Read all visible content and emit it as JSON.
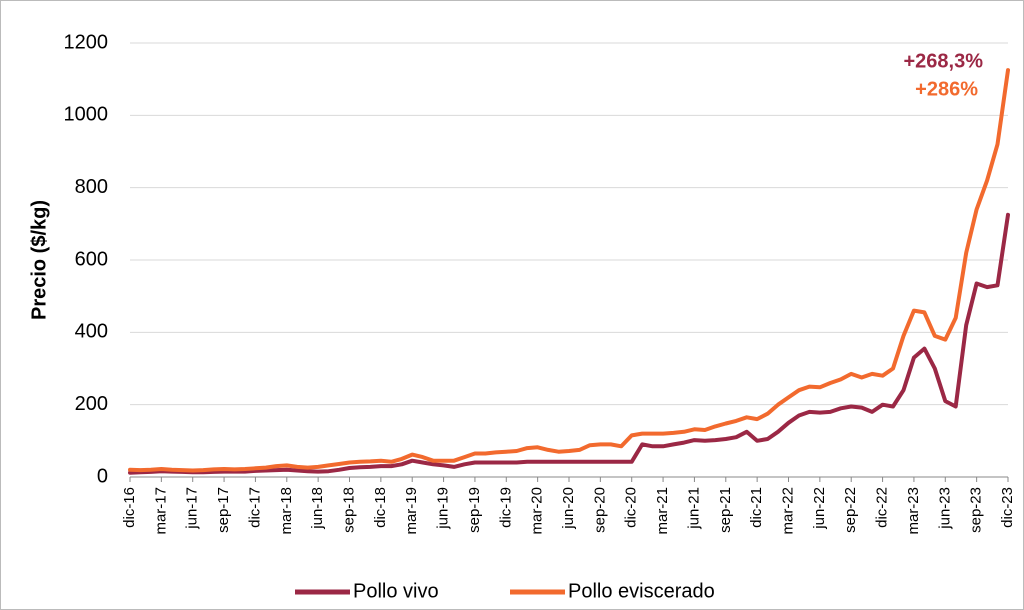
{
  "chart_data": {
    "type": "line",
    "y_label": "Precio ($/kg)",
    "ylim": [
      0,
      1200
    ],
    "yticks": [
      0,
      200,
      400,
      600,
      800,
      1000,
      1200
    ],
    "grid": true,
    "legend": "bottom",
    "categories": [
      "dic-16",
      null,
      null,
      "mar-17",
      null,
      null,
      "jun-17",
      null,
      null,
      "sep-17",
      null,
      null,
      "dic-17",
      null,
      null,
      "mar-18",
      null,
      null,
      "jun-18",
      null,
      null,
      "sep-18",
      null,
      null,
      "dic-18",
      null,
      null,
      "mar-19",
      null,
      null,
      "jun-19",
      null,
      null,
      "sep-19",
      null,
      null,
      "dic-19",
      null,
      null,
      "mar-20",
      null,
      null,
      "jun-20",
      null,
      null,
      "sep-20",
      null,
      null,
      "dic-20",
      null,
      null,
      "mar-21",
      null,
      null,
      "jun-21",
      null,
      null,
      "sep-21",
      null,
      null,
      "dic-21",
      null,
      null,
      "mar-22",
      null,
      null,
      "jun-22",
      null,
      null,
      "sep-22",
      null,
      null,
      "dic-22",
      null,
      null,
      "mar-23",
      null,
      null,
      "jun-23",
      null,
      null,
      "sep-23",
      null,
      null,
      "dic-23"
    ],
    "series": [
      {
        "name": "Pollo vivo",
        "color": "#9b2845",
        "values": [
          12,
          13,
          14,
          16,
          15,
          14,
          13,
          13,
          14,
          15,
          15,
          15,
          17,
          18,
          19,
          20,
          18,
          16,
          15,
          16,
          20,
          25,
          27,
          28,
          30,
          30,
          35,
          45,
          40,
          35,
          32,
          28,
          35,
          40,
          40,
          40,
          40,
          40,
          42,
          42,
          42,
          42,
          42,
          42,
          42,
          42,
          42,
          42,
          42,
          90,
          85,
          85,
          90,
          95,
          102,
          100,
          102,
          105,
          110,
          125,
          100,
          105,
          125,
          150,
          170,
          180,
          178,
          180,
          190,
          195,
          192,
          180,
          200,
          195,
          240,
          330,
          355,
          300,
          210,
          195,
          420,
          535,
          525,
          530,
          725
        ]
      },
      {
        "name": "Pollo eviscerado",
        "color": "#f26a2e",
        "values": [
          20,
          19,
          20,
          22,
          20,
          19,
          18,
          19,
          21,
          22,
          21,
          22,
          24,
          26,
          30,
          32,
          28,
          26,
          28,
          32,
          36,
          40,
          42,
          43,
          45,
          42,
          50,
          62,
          55,
          45,
          45,
          45,
          55,
          65,
          65,
          68,
          70,
          72,
          80,
          82,
          75,
          70,
          72,
          75,
          88,
          90,
          90,
          85,
          115,
          120,
          120,
          120,
          122,
          125,
          132,
          130,
          140,
          148,
          155,
          165,
          160,
          175,
          200,
          220,
          240,
          250,
          248,
          260,
          270,
          285,
          275,
          285,
          280,
          300,
          390,
          460,
          455,
          390,
          380,
          440,
          620,
          740,
          820,
          920,
          1125
        ]
      }
    ],
    "annotations": [
      {
        "text": "+268,3%",
        "color": "#9b2845"
      },
      {
        "text": "+286%",
        "color": "#f26a2e"
      }
    ]
  }
}
